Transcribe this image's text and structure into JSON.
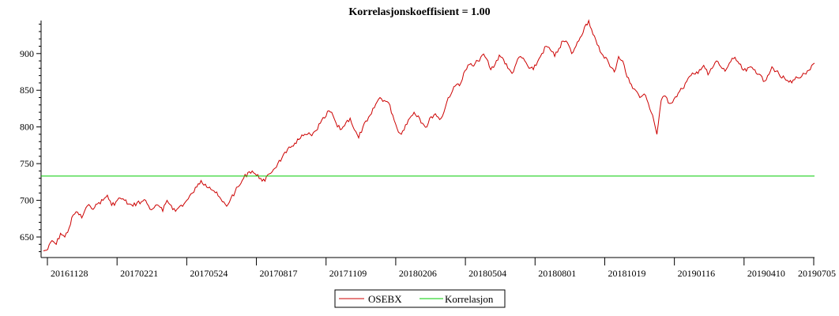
{
  "chart_data": {
    "type": "line",
    "title": "Korrelasjonskoeffisient =  1.00",
    "xlabel": "",
    "ylabel": "",
    "ylim": [
      622,
      945
    ],
    "y_ticks": [
      650,
      700,
      750,
      800,
      850,
      900
    ],
    "x_ticks": [
      "20161128",
      "20170221",
      "20170524",
      "20170817",
      "20171109",
      "20180206",
      "20180504",
      "20180801",
      "20181019",
      "20190116",
      "20190410",
      "20190705"
    ],
    "grid": false,
    "legend_position": "bottom-center",
    "series": [
      {
        "name": "OSEBX",
        "color": "#cc0000",
        "values": [
          631,
          633,
          645,
          640,
          655,
          650,
          662,
          680,
          684,
          676,
          690,
          692,
          690,
          697,
          700,
          707,
          693,
          698,
          703,
          700,
          695,
          692,
          697,
          698,
          700,
          688,
          690,
          693,
          685,
          700,
          693,
          685,
          692,
          695,
          702,
          710,
          718,
          727,
          722,
          718,
          713,
          706,
          698,
          692,
          703,
          712,
          720,
          730,
          738,
          740,
          734,
          730,
          726,
          736,
          742,
          750,
          758,
          765,
          772,
          778,
          783,
          788,
          790,
          788,
          795,
          805,
          812,
          822,
          815,
          800,
          797,
          806,
          812,
          796,
          785,
          800,
          808,
          818,
          831,
          840,
          836,
          833,
          816,
          798,
          790,
          803,
          812,
          820,
          815,
          805,
          800,
          814,
          818,
          810,
          820,
          840,
          849,
          858,
          860,
          877,
          885,
          883,
          890,
          898,
          893,
          878,
          885,
          898,
          892,
          880,
          873,
          887,
          896,
          890,
          880,
          878,
          889,
          900,
          910,
          905,
          896,
          907,
          917,
          915,
          900,
          910,
          922,
          936,
          945,
          926,
          912,
          900,
          895,
          882,
          875,
          896,
          890,
          868,
          858,
          850,
          840,
          845,
          832,
          816,
          790,
          836,
          842,
          832,
          838,
          846,
          852,
          862,
          870,
          872,
          878,
          884,
          871,
          880,
          890,
          882,
          876,
          887,
          893,
          889,
          879,
          876,
          882,
          878,
          872,
          862,
          870,
          882,
          876,
          868,
          866,
          861,
          864,
          867,
          869,
          872,
          878,
          887
        ]
      },
      {
        "name": "Korrelasjon",
        "color": "#00cc00",
        "values": [
          733
        ]
      }
    ]
  },
  "legend": {
    "items": [
      {
        "label": "OSEBX",
        "color": "#cc0000"
      },
      {
        "label": "Korrelasjon",
        "color": "#00cc00"
      }
    ]
  }
}
